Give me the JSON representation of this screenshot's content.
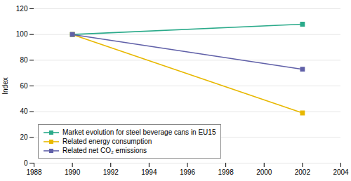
{
  "chart_data": {
    "type": "line",
    "x": [
      1990,
      2002
    ],
    "series": [
      {
        "name": "Market evolution for steel beverage cans in EU15",
        "color": "#2aaa8a",
        "values": [
          100,
          108
        ],
        "marker": "square"
      },
      {
        "name": "Related energy consumption",
        "color": "#e8b800",
        "values": [
          100,
          39
        ],
        "marker": "square"
      },
      {
        "name": "Related net CO₂ emissions",
        "color": "#6060a8",
        "values": [
          100,
          73
        ],
        "marker": "square"
      }
    ],
    "ylabel": "Index",
    "xlim": [
      1988,
      2004
    ],
    "xticks": [
      1988,
      1990,
      1992,
      1994,
      1996,
      1998,
      2000,
      2002,
      2004
    ],
    "ylim": [
      0,
      120
    ],
    "yticks": [
      0,
      20,
      40,
      60,
      80,
      100,
      120
    ],
    "grid": true,
    "legend": "lower left"
  }
}
